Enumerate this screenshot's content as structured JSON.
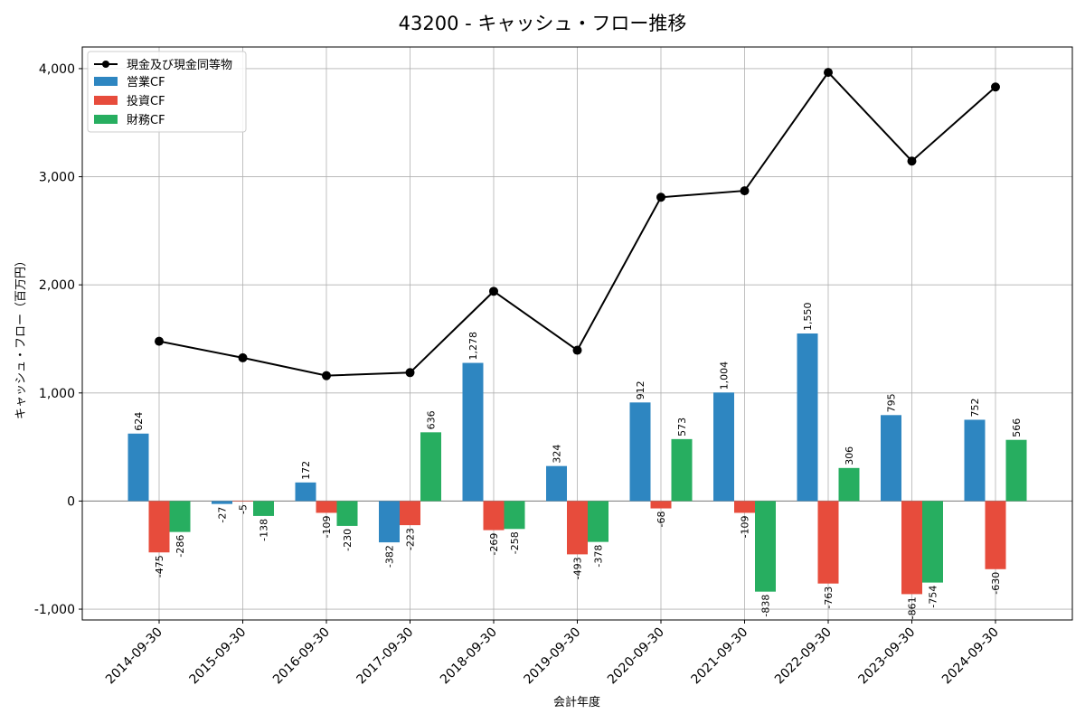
{
  "chart_data": {
    "type": "bar",
    "title": "43200 - キャッシュ・フロー推移",
    "xlabel": "会計年度",
    "ylabel": "キャッシュ・フロー（百万円）",
    "ylim": [
      -1100,
      4200
    ],
    "yticks": [
      -1000,
      0,
      1000,
      2000,
      3000,
      4000
    ],
    "ytick_labels": [
      "-1,000",
      "0",
      "1,000",
      "2,000",
      "3,000",
      "4,000"
    ],
    "grid": true,
    "legend_position": "top-left",
    "categories": [
      "2014-09-30",
      "2015-09-30",
      "2016-09-30",
      "2017-09-30",
      "2018-09-30",
      "2019-09-30",
      "2020-09-30",
      "2021-09-30",
      "2022-09-30",
      "2023-09-30",
      "2024-09-30"
    ],
    "series": [
      {
        "name": "営業CF",
        "kind": "bar",
        "color": "#2e86c1",
        "values": [
          624,
          -27,
          172,
          -382,
          1278,
          324,
          912,
          1004,
          1550,
          795,
          752
        ],
        "labels": [
          "624",
          "-27",
          "172",
          "-382",
          "1,278",
          "324",
          "912",
          "1,004",
          "1,550",
          "795",
          "752"
        ]
      },
      {
        "name": "投資CF",
        "kind": "bar",
        "color": "#e74c3c",
        "values": [
          -475,
          -5,
          -109,
          -223,
          -269,
          -493,
          -68,
          -109,
          -763,
          -861,
          -630
        ],
        "labels": [
          "-475",
          "-5",
          "-109",
          "-223",
          "-269",
          "-493",
          "-68",
          "-109",
          "-763",
          "-861",
          "-630"
        ]
      },
      {
        "name": "財務CF",
        "kind": "bar",
        "color": "#27ae60",
        "values": [
          -286,
          -138,
          -230,
          636,
          -258,
          -378,
          573,
          -838,
          306,
          -754,
          566
        ],
        "labels": [
          "-286",
          "-138",
          "-230",
          "636",
          "-258",
          "-378",
          "573",
          "-838",
          "306",
          "-754",
          "566"
        ]
      },
      {
        "name": "現金及び現金同等物",
        "kind": "line",
        "color": "#000000",
        "values": [
          1478,
          1325,
          1160,
          1188,
          1940,
          1395,
          2810,
          2870,
          3965,
          3145,
          3830
        ]
      }
    ]
  }
}
